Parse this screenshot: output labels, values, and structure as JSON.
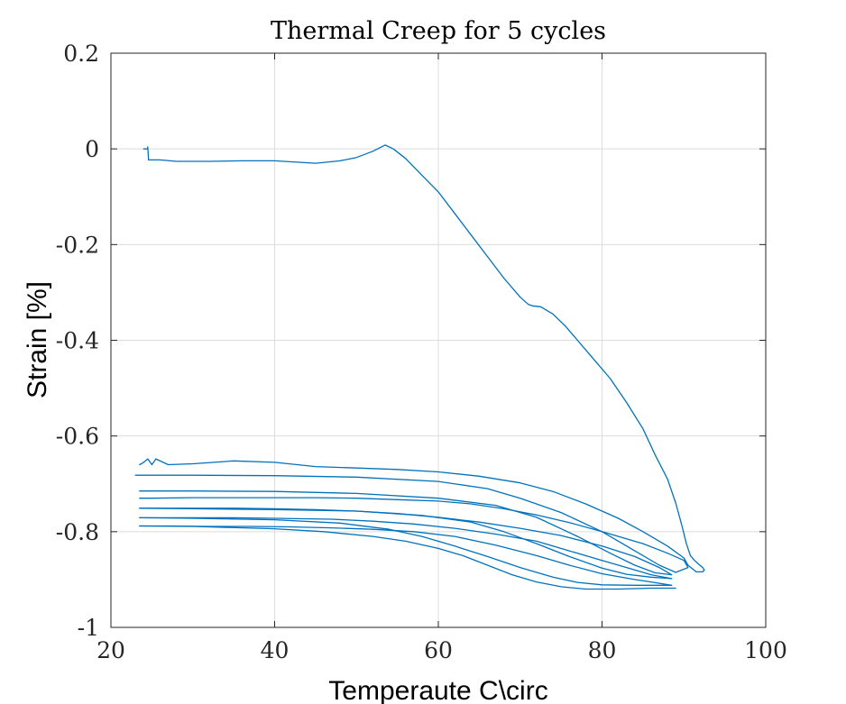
{
  "chart_data": {
    "type": "line",
    "title": "Thermal Creep for 5 cycles",
    "xlabel": "Temperaute C\\circ",
    "ylabel": "Strain [%]",
    "xlim": [
      20,
      100
    ],
    "ylim": [
      -1,
      0.2
    ],
    "xticks": [
      20,
      40,
      60,
      80,
      100
    ],
    "xtick_labels": [
      "20",
      "40",
      "60",
      "80",
      "100"
    ],
    "yticks": [
      0.2,
      0,
      -0.2,
      -0.4,
      -0.6,
      -0.8,
      -1
    ],
    "ytick_labels": [
      "0.2",
      "0",
      "-0.2",
      "-0.4",
      "-0.6",
      "-0.8",
      "-1"
    ],
    "grid": true,
    "line_color": "#0072BD",
    "series": [
      {
        "x": [
          24.0,
          24.5,
          24.5,
          24.6,
          26,
          28,
          32,
          36,
          40,
          45,
          48,
          50,
          52,
          53.5,
          54.5,
          56,
          58,
          60,
          62,
          64,
          66,
          68,
          70,
          71,
          71.5,
          72.5,
          74,
          75.5,
          77,
          79,
          81,
          83,
          85,
          86.5,
          88,
          89,
          89.8,
          90.3,
          90.8,
          91.3,
          91.8,
          92.3,
          92.5,
          92.3,
          91.5
        ],
        "y": [
          0,
          0,
          0.004,
          -0.023,
          -0.023,
          -0.026,
          -0.026,
          -0.025,
          -0.025,
          -0.03,
          -0.025,
          -0.018,
          -0.005,
          0.008,
          0.0,
          -0.02,
          -0.055,
          -0.09,
          -0.135,
          -0.18,
          -0.225,
          -0.27,
          -0.31,
          -0.325,
          -0.328,
          -0.33,
          -0.345,
          -0.37,
          -0.4,
          -0.44,
          -0.48,
          -0.53,
          -0.585,
          -0.64,
          -0.69,
          -0.74,
          -0.79,
          -0.825,
          -0.85,
          -0.86,
          -0.868,
          -0.875,
          -0.88,
          -0.884,
          -0.884
        ]
      },
      {
        "x": [
          91.5,
          90.5,
          90,
          88,
          85,
          82,
          78,
          74,
          70,
          65,
          60,
          55,
          50,
          45,
          40,
          35,
          30,
          27,
          25.5,
          25,
          24.5,
          24,
          23.5
        ],
        "y": [
          -0.884,
          -0.87,
          -0.855,
          -0.83,
          -0.8,
          -0.772,
          -0.742,
          -0.716,
          -0.698,
          -0.684,
          -0.675,
          -0.67,
          -0.667,
          -0.664,
          -0.655,
          -0.652,
          -0.658,
          -0.66,
          -0.648,
          -0.66,
          -0.648,
          -0.655,
          -0.66
        ]
      },
      {
        "x": [
          23,
          30,
          40,
          50,
          60,
          66,
          70,
          75,
          80,
          84,
          87,
          89,
          90.5,
          90
        ],
        "y": [
          -0.682,
          -0.682,
          -0.683,
          -0.686,
          -0.695,
          -0.71,
          -0.73,
          -0.76,
          -0.8,
          -0.84,
          -0.87,
          -0.885,
          -0.875,
          -0.86
        ]
      },
      {
        "x": [
          90,
          88,
          85,
          80,
          76,
          72,
          68,
          64,
          60,
          55,
          50,
          45,
          40,
          35,
          30,
          25,
          23.5
        ],
        "y": [
          -0.86,
          -0.845,
          -0.825,
          -0.8,
          -0.781,
          -0.765,
          -0.752,
          -0.742,
          -0.736,
          -0.733,
          -0.73,
          -0.729,
          -0.729,
          -0.729,
          -0.729,
          -0.73,
          -0.73
        ]
      },
      {
        "x": [
          23.5,
          30,
          40,
          50,
          60,
          67,
          72,
          77,
          81,
          84,
          86.5,
          88.5
        ],
        "y": [
          -0.715,
          -0.715,
          -0.716,
          -0.72,
          -0.73,
          -0.745,
          -0.77,
          -0.81,
          -0.845,
          -0.87,
          -0.886,
          -0.89
        ]
      },
      {
        "x": [
          88.5,
          87,
          84,
          80,
          75,
          70,
          65,
          60,
          55,
          50,
          45,
          40,
          35,
          30,
          25,
          23.5
        ],
        "y": [
          -0.89,
          -0.875,
          -0.852,
          -0.83,
          -0.808,
          -0.793,
          -0.78,
          -0.77,
          -0.762,
          -0.757,
          -0.754,
          -0.752,
          -0.751,
          -0.751,
          -0.751,
          -0.751
        ]
      },
      {
        "x": [
          23.5,
          30,
          40,
          50,
          58,
          64,
          68,
          72,
          76,
          80,
          83,
          86,
          88.5
        ],
        "y": [
          -0.751,
          -0.752,
          -0.754,
          -0.757,
          -0.766,
          -0.78,
          -0.8,
          -0.825,
          -0.852,
          -0.876,
          -0.889,
          -0.895,
          -0.898
        ]
      },
      {
        "x": [
          88.5,
          86,
          83,
          80,
          76,
          72,
          67,
          62,
          57,
          52,
          47,
          40,
          35,
          30,
          25,
          23.5
        ],
        "y": [
          -0.898,
          -0.89,
          -0.875,
          -0.86,
          -0.84,
          -0.82,
          -0.805,
          -0.793,
          -0.784,
          -0.778,
          -0.774,
          -0.772,
          -0.771,
          -0.771,
          -0.771,
          -0.771
        ]
      },
      {
        "x": [
          23.5,
          30,
          40,
          48,
          54,
          58,
          62,
          66,
          70,
          74,
          77,
          80,
          84,
          88.5
        ],
        "y": [
          -0.771,
          -0.772,
          -0.775,
          -0.782,
          -0.795,
          -0.81,
          -0.83,
          -0.852,
          -0.875,
          -0.895,
          -0.906,
          -0.911,
          -0.912,
          -0.912
        ]
      },
      {
        "x": [
          88.5,
          86,
          84,
          80,
          76,
          72,
          67,
          62,
          57,
          52,
          47,
          42,
          37,
          32,
          27,
          23.5
        ],
        "y": [
          -0.912,
          -0.905,
          -0.9,
          -0.888,
          -0.87,
          -0.85,
          -0.828,
          -0.81,
          -0.8,
          -0.795,
          -0.792,
          -0.79,
          -0.789,
          -0.789,
          -0.788,
          -0.788
        ]
      },
      {
        "x": [
          23.5,
          30,
          40,
          46,
          52,
          56,
          60,
          63,
          66,
          69,
          72,
          75,
          78,
          82,
          86,
          89
        ],
        "y": [
          -0.788,
          -0.789,
          -0.794,
          -0.8,
          -0.81,
          -0.82,
          -0.835,
          -0.85,
          -0.87,
          -0.89,
          -0.905,
          -0.915,
          -0.92,
          -0.92,
          -0.918,
          -0.918
        ]
      }
    ]
  }
}
